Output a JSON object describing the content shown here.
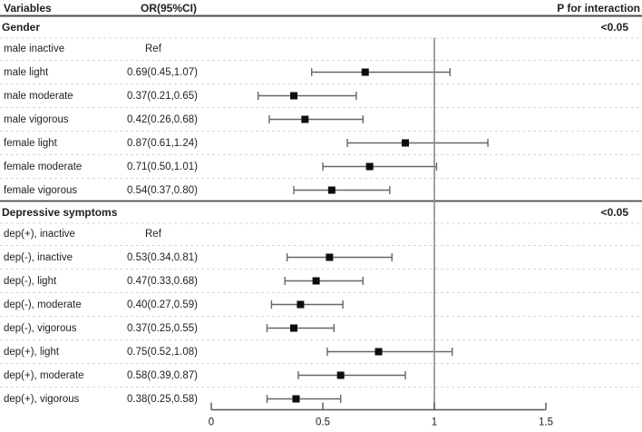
{
  "header": {
    "variables": "Variables",
    "or": "OR(95%CI)",
    "p_interaction": "P for interaction"
  },
  "chart_data": {
    "type": "forest",
    "title": "",
    "xlabel": "",
    "x_axis": {
      "range": [
        0,
        1.5
      ],
      "ticks": [
        0,
        0.5,
        1,
        1.5
      ],
      "tick_labels": [
        "0",
        "0.5",
        "1",
        "1.5"
      ],
      "reference_line": 1
    },
    "columns": [
      "Variables",
      "OR(95%CI)",
      "P for interaction"
    ],
    "sections": [
      {
        "label": "Gender",
        "p_for_interaction": "<0.05",
        "rows": [
          {
            "label": "male inactive",
            "or_text": "Ref",
            "ref": true
          },
          {
            "label": "male light",
            "or_text": "0.69(0.45,1.07)",
            "est": 0.69,
            "lo": 0.45,
            "hi": 1.07
          },
          {
            "label": "male moderate",
            "or_text": "0.37(0.21,0.65)",
            "est": 0.37,
            "lo": 0.21,
            "hi": 0.65
          },
          {
            "label": "male vigorous",
            "or_text": "0.42(0.26,0.68)",
            "est": 0.42,
            "lo": 0.26,
            "hi": 0.68
          },
          {
            "label": "female light",
            "or_text": "0.87(0.61,1.24)",
            "est": 0.87,
            "lo": 0.61,
            "hi": 1.24
          },
          {
            "label": "female moderate",
            "or_text": "0.71(0.50,1.01)",
            "est": 0.71,
            "lo": 0.5,
            "hi": 1.01
          },
          {
            "label": "female vigorous",
            "or_text": "0.54(0.37,0.80)",
            "est": 0.54,
            "lo": 0.37,
            "hi": 0.8
          }
        ]
      },
      {
        "label": "Depressive symptoms",
        "p_for_interaction": "<0.05",
        "rows": [
          {
            "label": "dep(+), inactive",
            "or_text": "Ref",
            "ref": true
          },
          {
            "label": "dep(-), inactive",
            "or_text": "0.53(0.34,0.81)",
            "est": 0.53,
            "lo": 0.34,
            "hi": 0.81
          },
          {
            "label": "dep(-), light",
            "or_text": "0.47(0.33,0.68)",
            "est": 0.47,
            "lo": 0.33,
            "hi": 0.68
          },
          {
            "label": "dep(-), moderate",
            "or_text": "0.40(0.27,0.59)",
            "est": 0.4,
            "lo": 0.27,
            "hi": 0.59
          },
          {
            "label": "dep(-), vigorous",
            "or_text": "0.37(0.25,0.55)",
            "est": 0.37,
            "lo": 0.25,
            "hi": 0.55
          },
          {
            "label": "dep(+), light",
            "or_text": "0.75(0.52,1.08)",
            "est": 0.75,
            "lo": 0.52,
            "hi": 1.08
          },
          {
            "label": "dep(+), moderate",
            "or_text": "0.58(0.39,0.87)",
            "est": 0.58,
            "lo": 0.39,
            "hi": 0.87
          },
          {
            "label": "dep(+), vigorous",
            "or_text": "0.38(0.25,0.58)",
            "est": 0.38,
            "lo": 0.25,
            "hi": 0.58
          }
        ]
      }
    ],
    "colors": {
      "text": "#1f1f1f",
      "solid_line": "#4a4a4a",
      "dashed_line": "#d8d8d8",
      "ci_line": "#666666",
      "marker": "#0d0d0d",
      "reference_line": "#8a8a8a",
      "axis": "#555555"
    }
  }
}
